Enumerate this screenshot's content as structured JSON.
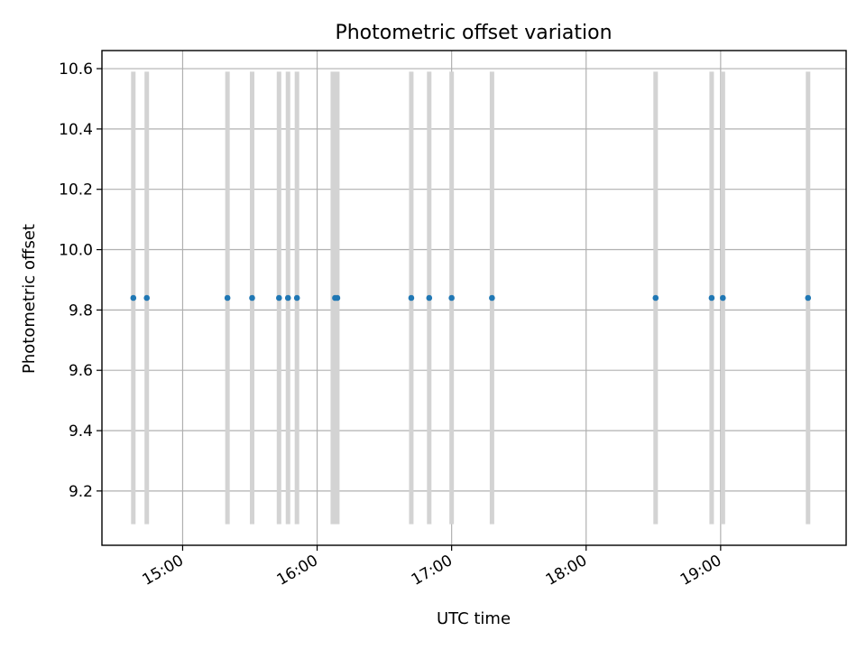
{
  "chart_data": {
    "type": "scatter",
    "title": "Photometric offset variation",
    "xlabel": "UTC time",
    "ylabel": "Photometric offset",
    "x_tick_labels": [
      "15:00",
      "16:00",
      "17:00",
      "18:00",
      "19:00"
    ],
    "x_tick_values": [
      "15:00",
      "16:00",
      "17:00",
      "18:00",
      "19:00"
    ],
    "xlim": [
      "14:24",
      "19:56"
    ],
    "y_ticks": [
      9.2,
      9.4,
      9.6,
      9.8,
      10.0,
      10.2,
      10.4,
      10.6
    ],
    "ylim": [
      9.02,
      10.66
    ],
    "grid": true,
    "point_color": "#1f77b4",
    "band_color": "#d3d3d3",
    "points": [
      {
        "time": "14:38",
        "y": 9.84
      },
      {
        "time": "14:44",
        "y": 9.84
      },
      {
        "time": "15:20",
        "y": 9.84
      },
      {
        "time": "15:31",
        "y": 9.84
      },
      {
        "time": "15:43",
        "y": 9.84
      },
      {
        "time": "15:47",
        "y": 9.84
      },
      {
        "time": "15:51",
        "y": 9.84
      },
      {
        "time": "16:08",
        "y": 9.84
      },
      {
        "time": "16:09",
        "y": 9.84
      },
      {
        "time": "16:42",
        "y": 9.84
      },
      {
        "time": "16:50",
        "y": 9.84
      },
      {
        "time": "17:00",
        "y": 9.84
      },
      {
        "time": "17:18",
        "y": 9.84
      },
      {
        "time": "18:31",
        "y": 9.84
      },
      {
        "time": "18:56",
        "y": 9.84
      },
      {
        "time": "19:01",
        "y": 9.84
      },
      {
        "time": "19:39",
        "y": 9.84
      }
    ],
    "bands": [
      {
        "start": "14:38",
        "end": "14:38",
        "y_range": [
          9.09,
          10.59
        ]
      },
      {
        "start": "14:44",
        "end": "14:44",
        "y_range": [
          9.09,
          10.59
        ]
      },
      {
        "start": "15:20",
        "end": "15:20",
        "y_range": [
          9.09,
          10.59
        ]
      },
      {
        "start": "15:31",
        "end": "15:31",
        "y_range": [
          9.09,
          10.59
        ]
      },
      {
        "start": "15:43",
        "end": "15:43",
        "y_range": [
          9.09,
          10.59
        ]
      },
      {
        "start": "15:47",
        "end": "15:47",
        "y_range": [
          9.09,
          10.59
        ]
      },
      {
        "start": "15:51",
        "end": "15:51",
        "y_range": [
          9.09,
          10.59
        ]
      },
      {
        "start": "16:07",
        "end": "16:09",
        "y_range": [
          9.09,
          10.59
        ]
      },
      {
        "start": "16:42",
        "end": "16:42",
        "y_range": [
          9.09,
          10.59
        ]
      },
      {
        "start": "16:50",
        "end": "16:50",
        "y_range": [
          9.09,
          10.59
        ]
      },
      {
        "start": "17:00",
        "end": "17:00",
        "y_range": [
          9.09,
          10.59
        ]
      },
      {
        "start": "17:18",
        "end": "17:18",
        "y_range": [
          9.09,
          10.59
        ]
      },
      {
        "start": "18:31",
        "end": "18:31",
        "y_range": [
          9.09,
          10.59
        ]
      },
      {
        "start": "18:56",
        "end": "18:56",
        "y_range": [
          9.09,
          10.59
        ]
      },
      {
        "start": "19:01",
        "end": "19:01",
        "y_range": [
          9.09,
          10.59
        ]
      },
      {
        "start": "19:39",
        "end": "19:39",
        "y_range": [
          9.09,
          10.59
        ]
      }
    ]
  }
}
